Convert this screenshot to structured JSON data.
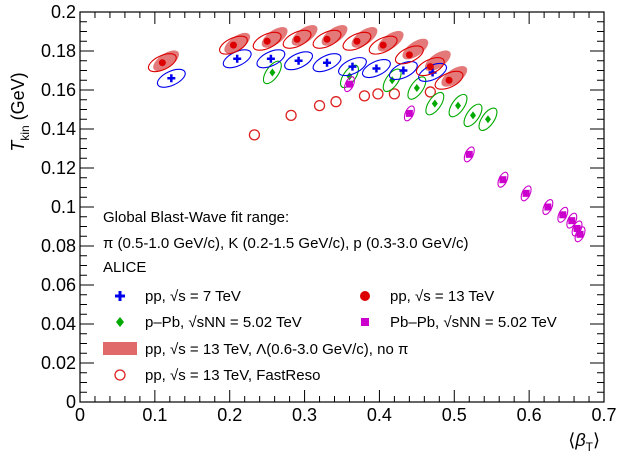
{
  "chart_data": {
    "type": "scatter",
    "title": "",
    "xlabel": "⟨β_T⟩",
    "ylabel": "T_kin (GeV)",
    "xlim": [
      0,
      0.7
    ],
    "ylim": [
      0,
      0.2
    ],
    "xticks": [
      0,
      0.1,
      0.2,
      0.3,
      0.4,
      0.5,
      0.6,
      0.7
    ],
    "yticks": [
      0,
      0.02,
      0.04,
      0.06,
      0.08,
      0.1,
      0.12,
      0.14,
      0.16,
      0.18,
      0.2
    ],
    "annotations": [
      "Global Blast-Wave fit range:",
      "π (0.5-1.0 GeV/c), K (0.2-1.5 GeV/c), p (0.3-3.0 GeV/c)",
      "ALICE"
    ],
    "series": [
      {
        "name": "pp, √s = 7 TeV",
        "legend_text": "pp, √s = 7 TeV",
        "color": "#0000ee",
        "marker": "cross",
        "points": [
          [
            0.122,
            0.166
          ],
          [
            0.21,
            0.176
          ],
          [
            0.255,
            0.176
          ],
          [
            0.292,
            0.175
          ],
          [
            0.33,
            0.174
          ],
          [
            0.364,
            0.172
          ],
          [
            0.396,
            0.171
          ],
          [
            0.432,
            0.17
          ],
          [
            0.471,
            0.169
          ]
        ]
      },
      {
        "name": "p–Pb, √s_NN = 5.02 TeV",
        "legend_text": "p–Pb, √sNN = 5.02 TeV",
        "color": "#00aa00",
        "marker": "diamond",
        "points": [
          [
            0.257,
            0.169
          ],
          [
            0.36,
            0.167
          ],
          [
            0.417,
            0.165
          ],
          [
            0.45,
            0.161
          ],
          [
            0.474,
            0.153
          ],
          [
            0.505,
            0.152
          ],
          [
            0.525,
            0.147
          ],
          [
            0.545,
            0.145
          ]
        ]
      },
      {
        "name": "pp, √s = 13 TeV",
        "legend_text": "pp, √s = 13 TeV",
        "color": "#dd0000",
        "marker": "circle",
        "points": [
          [
            0.11,
            0.174
          ],
          [
            0.205,
            0.183
          ],
          [
            0.25,
            0.185
          ],
          [
            0.29,
            0.186
          ],
          [
            0.33,
            0.186
          ],
          [
            0.37,
            0.185
          ],
          [
            0.405,
            0.183
          ],
          [
            0.44,
            0.178
          ],
          [
            0.468,
            0.172
          ],
          [
            0.493,
            0.165
          ]
        ]
      },
      {
        "name": "Pb–Pb, √s_NN = 5.02 TeV",
        "legend_text": "Pb–Pb, √sNN = 5.02 TeV",
        "color": "#cc00cc",
        "marker": "square",
        "points": [
          [
            0.36,
            0.163
          ],
          [
            0.44,
            0.148
          ],
          [
            0.52,
            0.127
          ],
          [
            0.565,
            0.114
          ],
          [
            0.596,
            0.107
          ],
          [
            0.625,
            0.1
          ],
          [
            0.645,
            0.096
          ],
          [
            0.657,
            0.093
          ],
          [
            0.664,
            0.089
          ],
          [
            0.668,
            0.086
          ]
        ]
      },
      {
        "name": "pp, √s = 13 TeV, Λ(0.6-3.0 GeV/c), no π",
        "legend_text": "pp, √s = 13 TeV, Λ(0.6-3.0 GeV/c), no π",
        "color": "#e06a6a",
        "marker": "band",
        "points": [
          [
            0.115,
            0.175
          ],
          [
            0.21,
            0.184
          ],
          [
            0.26,
            0.187
          ],
          [
            0.3,
            0.188
          ],
          [
            0.34,
            0.188
          ],
          [
            0.38,
            0.187
          ],
          [
            0.415,
            0.185
          ],
          [
            0.448,
            0.181
          ],
          [
            0.478,
            0.175
          ],
          [
            0.5,
            0.167
          ]
        ]
      },
      {
        "name": "pp, √s = 13 TeV, FastReso",
        "legend_text": "pp, √s = 13 TeV, FastReso",
        "color": "#dd2222",
        "marker": "open-circle",
        "points": [
          [
            0.233,
            0.137
          ],
          [
            0.282,
            0.147
          ],
          [
            0.32,
            0.152
          ],
          [
            0.342,
            0.154
          ],
          [
            0.38,
            0.157
          ],
          [
            0.398,
            0.158
          ],
          [
            0.42,
            0.158
          ],
          [
            0.468,
            0.159
          ]
        ]
      }
    ]
  }
}
